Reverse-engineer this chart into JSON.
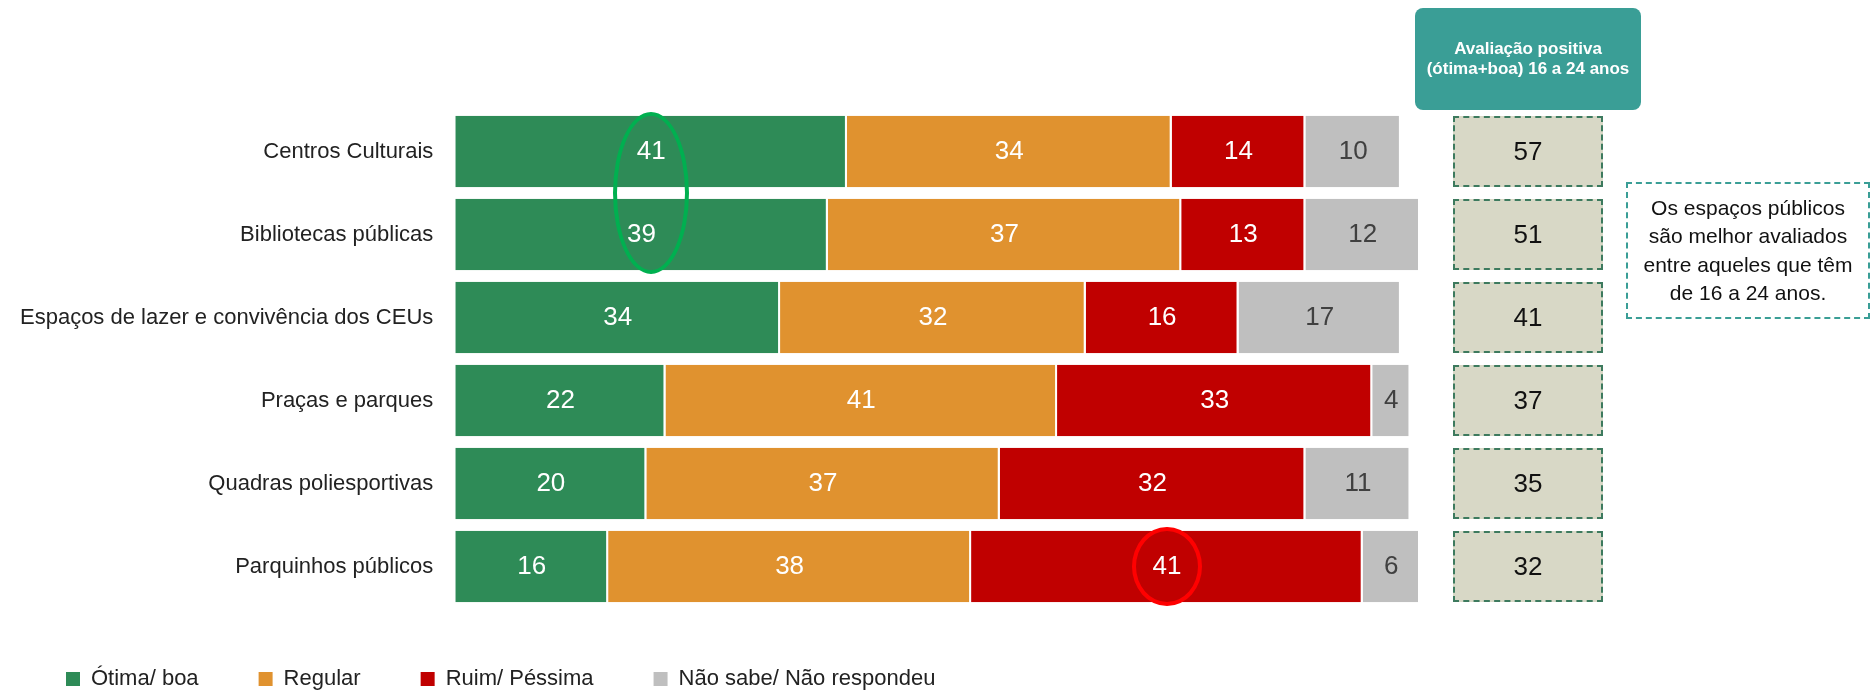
{
  "chart_data": [
    {
      "type": "bar",
      "orientation": "horizontal",
      "stacked": true,
      "categories": [
        "Centros Culturais",
        "Bibliotecas públicas",
        "Espaços de lazer e convivência dos CEUs",
        "Praças e parques",
        "Quadras poliesportivas",
        "Parquinhos públicos"
      ],
      "series": [
        {
          "name": "Ótima/ boa",
          "color": "#2e8b57",
          "values": [
            41,
            39,
            34,
            22,
            20,
            16
          ]
        },
        {
          "name": "Regular",
          "color": "#e0922f",
          "values": [
            34,
            37,
            32,
            41,
            37,
            38
          ]
        },
        {
          "name": "Ruim/ Péssima",
          "color": "#c00000",
          "values": [
            14,
            13,
            16,
            33,
            32,
            41
          ]
        },
        {
          "name": "Não sabe/ Não respondeu",
          "color": "#bfbfbf",
          "values": [
            10,
            12,
            17,
            4,
            11,
            6
          ]
        }
      ],
      "data_labels": true,
      "legend": "bottom",
      "tick_labels": "y",
      "grid": false
    },
    {
      "type": "other",
      "title": "Avaliação positiva (ótima+boa) 16 a 24 anos",
      "values": [
        57,
        51,
        41,
        37,
        35,
        32
      ],
      "data_labels": true,
      "annotations": [
        "Os espaços públicos são melhor avaliados entre aqueles que têm de 16 a 24 anos."
      ]
    }
  ]
}
